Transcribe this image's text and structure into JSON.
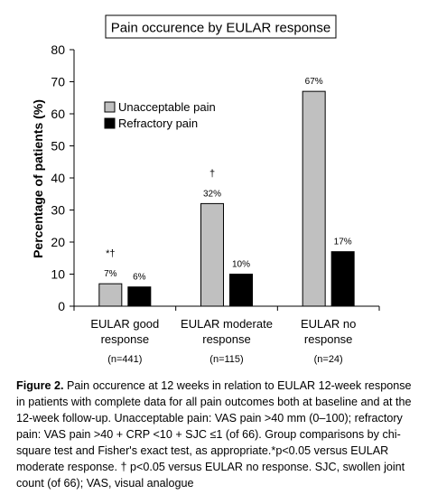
{
  "chart_data": {
    "type": "bar",
    "title": "Pain occurence by EULAR response",
    "ylabel": "Percentage of patients (%)",
    "xlabel": "",
    "ylim": [
      0,
      80
    ],
    "yticks": [
      0,
      10,
      20,
      30,
      40,
      50,
      60,
      70,
      80
    ],
    "grid": false,
    "legend_position": "top-left",
    "categories": [
      {
        "label_line1": "EULAR good",
        "label_line2": "response",
        "n": "(n=441)",
        "marker": "*†"
      },
      {
        "label_line1": "EULAR moderate",
        "label_line2": "response",
        "n": "(n=115)",
        "marker": "†"
      },
      {
        "label_line1": "EULAR no",
        "label_line2": "response",
        "n": "(n=24)",
        "marker": ""
      }
    ],
    "series": [
      {
        "name": "Unacceptable pain",
        "color": "#c0c0c0",
        "values": [
          7,
          32,
          67
        ],
        "labels": [
          "7%",
          "32%",
          "67%"
        ]
      },
      {
        "name": "Refractory pain",
        "color": "#000000",
        "values": [
          6,
          10,
          17
        ],
        "labels": [
          "6%",
          "10%",
          "17%"
        ]
      }
    ]
  },
  "caption": {
    "label": "Figure 2.",
    "text": " Pain occurence at 12 weeks in relation to EULAR 12-week response in patients with complete data for all pain outcomes both at baseline and at the 12-week follow-up. Unacceptable pain: VAS pain >40 mm (0–100); refractory pain: VAS pain >40 + CRP <10 + SJC ≤1 (of 66). Group comparisons by chi-square test and Fisher's exact test, as appropriate.*p<0.05 versus EULAR moderate response. † p<0.05 versus EULAR no response. SJC, swollen joint count (of 66); VAS, visual analogue"
  }
}
